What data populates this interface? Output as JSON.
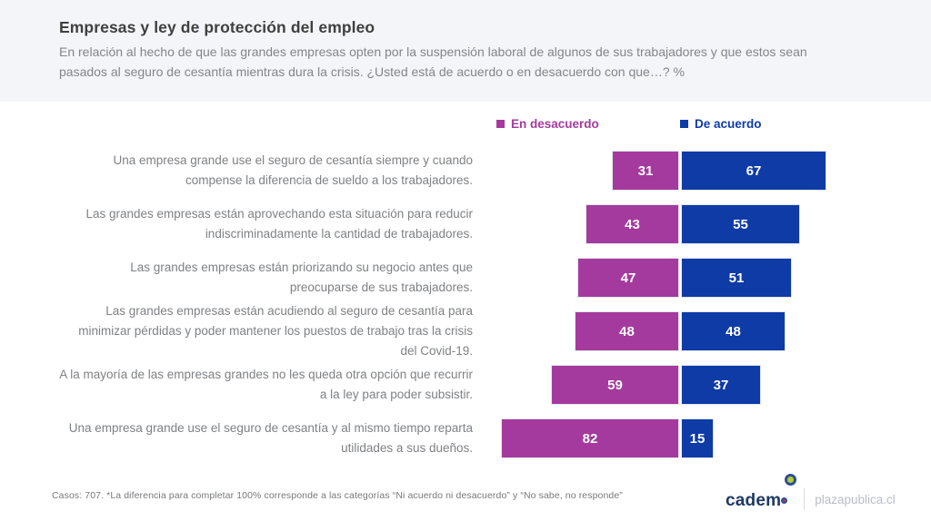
{
  "header": {
    "title": "Empresas y ley de protección del empleo",
    "subtitle": "En relación al hecho de que las grandes empresas opten por la suspensión laboral de algunos de sus trabajadores y que estos sean pasados al seguro de cesantía mientras dura la crisis. ¿Usted está de acuerdo o en desacuerdo con que…? %"
  },
  "legend": [
    {
      "label": "En desacuerdo",
      "color": "#a53a9e"
    },
    {
      "label": "De acuerdo",
      "color": "#0e3ba6"
    }
  ],
  "chart_data": {
    "type": "bar",
    "orientation": "horizontal-diverging",
    "title": "Empresas y ley de protección del empleo",
    "xlim": [
      0,
      100
    ],
    "grid": false,
    "legend_position": "top",
    "categories": [
      "Una empresa grande use el seguro de cesantía siempre y cuando compense la diferencia de sueldo a los trabajadores.",
      "Las grandes empresas están aprovechando esta situación para reducir indiscriminadamente la cantidad de trabajadores.",
      "Las grandes empresas están priorizando su negocio antes que preocuparse de sus trabajadores.",
      "Las grandes empresas están acudiendo al seguro de cesantía para minimizar pérdidas y poder mantener los puestos de trabajo tras la crisis del Covid-19.",
      "A la mayoría de las empresas grandes no les queda otra opción que recurrir a la ley para poder subsistir.",
      "Una empresa grande use el seguro de cesantía y al mismo tiempo reparta utilidades a sus dueños."
    ],
    "series": [
      {
        "name": "En desacuerdo",
        "color": "#a53a9e",
        "values": [
          31,
          43,
          47,
          48,
          59,
          82
        ]
      },
      {
        "name": "De acuerdo",
        "color": "#0e3ba6",
        "values": [
          67,
          55,
          51,
          48,
          37,
          15
        ]
      }
    ]
  },
  "footer": {
    "note": "Casos: 707. *La diferencia para completar 100% corresponde a las categorías “Ni acuerdo ni desacuerdo” y “No sabe, no responde”",
    "brand": "cadem",
    "site": "plazapublica.cl"
  }
}
